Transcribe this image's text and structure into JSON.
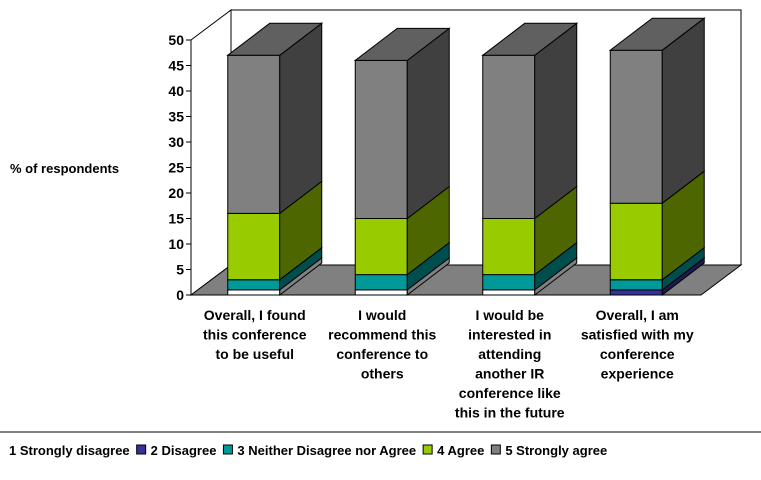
{
  "chart_data": {
    "type": "bar",
    "stacked": true,
    "three_d": true,
    "ylabel": "% of respondents",
    "xlabel": "",
    "title": "",
    "ylim": [
      0,
      50
    ],
    "yticks": [
      "0",
      "5",
      "10",
      "15",
      "20",
      "25",
      "30",
      "35",
      "40",
      "45",
      "50"
    ],
    "grid": false,
    "legend_position": "bottom",
    "categories": [
      [
        "Overall, I found",
        "this conference",
        "to be useful"
      ],
      [
        "I would",
        "recommend this",
        "conference to",
        "others"
      ],
      [
        "I would be",
        "interested in",
        "attending",
        "another IR",
        "conference like",
        "this in the future"
      ],
      [
        "Overall, I am",
        "satisfied with my",
        "conference",
        "experience"
      ]
    ],
    "series": [
      {
        "name": "1 Strongly disagree",
        "color": "#ffffff",
        "values": [
          1,
          1,
          1,
          0
        ]
      },
      {
        "name": "2 Disagree",
        "color": "#333399",
        "values": [
          0,
          0,
          0,
          1
        ]
      },
      {
        "name": "3 Neither Disagree nor Agree",
        "color": "#009999",
        "values": [
          2,
          3,
          3,
          2
        ]
      },
      {
        "name": "4 Agree",
        "color": "#99cc00",
        "values": [
          13,
          11,
          11,
          15
        ]
      },
      {
        "name": "5 Strongly agree",
        "color": "#808080",
        "values": [
          31,
          31,
          32,
          30
        ]
      }
    ]
  }
}
